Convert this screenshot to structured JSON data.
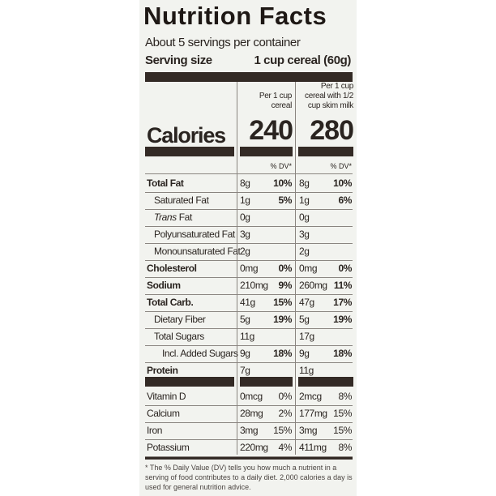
{
  "header": {
    "title": "Nutrition Facts",
    "servings": "About 5 servings per container",
    "serving_label": "Serving size",
    "serving_value": "1 cup cereal (60g)"
  },
  "columns": [
    "Per 1 cup cereal",
    "Per 1 cup cereal with 1/2 cup skim milk"
  ],
  "calories": {
    "label": "Calories",
    "values": [
      "240",
      "280"
    ]
  },
  "dv_headers": [
    "% DV*",
    "% DV*"
  ],
  "nutrients": [
    {
      "name": "Total Fat",
      "bold": true,
      "indent": false,
      "cells": [
        "8g",
        "10%",
        "8g",
        "10%"
      ]
    },
    {
      "name": "Saturated Fat",
      "bold": false,
      "indent": true,
      "cells": [
        "1g",
        "5%",
        "1g",
        "6%"
      ]
    },
    {
      "italic_prefix": "Trans",
      "name": "Fat",
      "bold": false,
      "indent": true,
      "cells": [
        "0g",
        null,
        "0g",
        null
      ]
    },
    {
      "name": "Polyunsaturated Fat",
      "bold": false,
      "indent": true,
      "cells": [
        "3g",
        null,
        "3g",
        null
      ]
    },
    {
      "name": "Monounsaturated Fat",
      "bold": false,
      "indent": true,
      "cells": [
        "2g",
        null,
        "2g",
        null
      ]
    },
    {
      "name": "Cholesterol",
      "bold": true,
      "indent": false,
      "cells": [
        "0mg",
        "0%",
        "0mg",
        "0%"
      ]
    },
    {
      "name": "Sodium",
      "bold": true,
      "indent": false,
      "cells": [
        "210mg",
        "9%",
        "260mg",
        "11%"
      ]
    },
    {
      "name": "Total Carb.",
      "bold": true,
      "indent": false,
      "cells": [
        "41g",
        "15%",
        "47g",
        "17%"
      ]
    },
    {
      "name": "Dietary Fiber",
      "bold": false,
      "indent": true,
      "cells": [
        "5g",
        "19%",
        "5g",
        "19%"
      ]
    },
    {
      "name": "Total Sugars",
      "bold": false,
      "indent": true,
      "cells": [
        "11g",
        null,
        "17g",
        null
      ]
    },
    {
      "name": "Incl. Added Sugars",
      "bold": false,
      "indent": true,
      "indent2": true,
      "cells": [
        "9g",
        "18%",
        "9g",
        "18%"
      ]
    },
    {
      "name": "Protein",
      "bold": true,
      "indent": false,
      "cells": [
        "7g",
        null,
        "11g",
        null
      ]
    }
  ],
  "vitamins": [
    {
      "name": "Vitamin D",
      "cells": [
        "0mcg",
        "0%",
        "2mcg",
        "8%"
      ]
    },
    {
      "name": "Calcium",
      "cells": [
        "28mg",
        "2%",
        "177mg",
        "15%"
      ]
    },
    {
      "name": "Iron",
      "cells": [
        "3mg",
        "15%",
        "3mg",
        "15%"
      ]
    },
    {
      "name": "Potassium",
      "cells": [
        "220mg",
        "4%",
        "411mg",
        "8%"
      ]
    }
  ],
  "footnote": "* The % Daily Value (DV) tells you how much a nutrient in a serving of food contributes to a daily diet. 2,000 calories a day is used for general nutrition advice."
}
